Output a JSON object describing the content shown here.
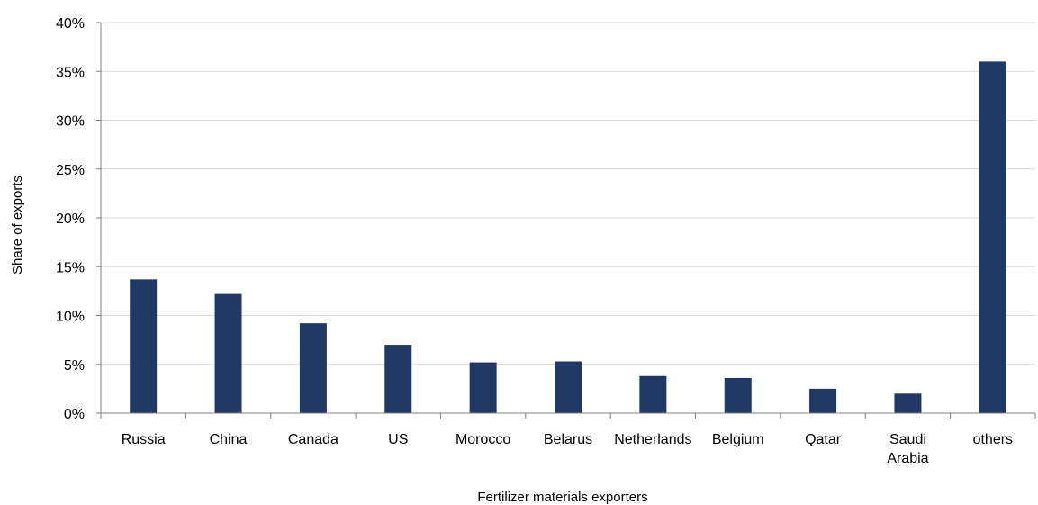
{
  "chart_data": {
    "type": "bar",
    "title": "",
    "xlabel": "Fertilizer materials exporters",
    "ylabel": "Share of exports",
    "categories": [
      "Russia",
      "China",
      "Canada",
      "US",
      "Morocco",
      "Belarus",
      "Netherlands",
      "Belgium",
      "Qatar",
      "Saudi Arabia",
      "others"
    ],
    "category_lines": [
      [
        "Russia"
      ],
      [
        "China"
      ],
      [
        "Canada"
      ],
      [
        "US"
      ],
      [
        "Morocco"
      ],
      [
        "Belarus"
      ],
      [
        "Netherlands"
      ],
      [
        "Belgium"
      ],
      [
        "Qatar"
      ],
      [
        "Saudi",
        "Arabia"
      ],
      [
        "others"
      ]
    ],
    "values": [
      13.7,
      12.2,
      9.2,
      7.0,
      5.2,
      5.3,
      3.8,
      3.6,
      2.5,
      2.0,
      36.0
    ],
    "ylim": [
      0,
      40
    ],
    "yticks": [
      0,
      5,
      10,
      15,
      20,
      25,
      30,
      35,
      40
    ],
    "ytick_labels": [
      "0%",
      "5%",
      "10%",
      "15%",
      "20%",
      "25%",
      "30%",
      "35%",
      "40%"
    ],
    "grid": true,
    "legend": "none",
    "bar_color": "#1f3864"
  }
}
